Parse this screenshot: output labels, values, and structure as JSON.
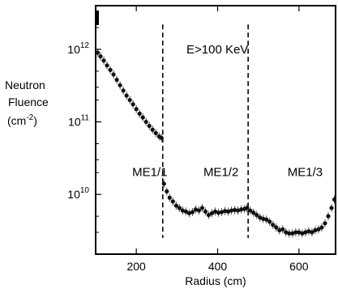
{
  "chart_data": {
    "type": "scatter",
    "title": "",
    "annotation": "E>100 KeV",
    "xlabel": "Radius (cm)",
    "ylabel_lines": [
      "Neutron",
      "Fluence",
      "(cm",
      "-2",
      ")"
    ],
    "xlim": [
      100,
      690
    ],
    "ylim": [
      1500000000.0,
      4000000000000.0
    ],
    "yscale": "log",
    "grid": false,
    "x_ticks": [
      {
        "value": 200,
        "label": "200"
      },
      {
        "value": 400,
        "label": "400"
      },
      {
        "value": 600,
        "label": "600"
      }
    ],
    "y_ticks": [
      {
        "value": 10000000000.0,
        "base": "10",
        "exp": "10"
      },
      {
        "value": 100000000000.0,
        "base": "10",
        "exp": "11"
      },
      {
        "value": 1000000000000.0,
        "base": "10",
        "exp": "12"
      }
    ],
    "boundaries": [
      265,
      475
    ],
    "regions": [
      {
        "label": "ME1/1",
        "x": 190,
        "y": 18000000000.0
      },
      {
        "label": "ME1/2",
        "x": 365,
        "y": 18000000000.0
      },
      {
        "label": "ME1/3",
        "x": 572,
        "y": 18000000000.0
      }
    ],
    "series": [
      {
        "x": [
          105,
          112,
          120,
          128,
          136,
          144,
          152,
          160,
          168,
          176,
          184,
          192,
          200,
          208,
          216,
          224,
          232,
          240,
          248,
          256,
          262,
          268,
          275,
          282,
          290,
          298,
          306,
          314,
          322,
          330,
          338,
          346,
          354,
          362,
          370,
          378,
          386,
          394,
          402,
          410,
          418,
          426,
          434,
          442,
          450,
          458,
          466,
          472,
          480,
          488,
          496,
          504,
          512,
          520,
          528,
          536,
          544,
          552,
          560,
          568,
          576,
          584,
          592,
          600,
          608,
          616,
          624,
          632,
          640,
          648,
          656,
          664,
          672,
          680,
          687
        ],
        "y": [
          900000000000.0,
          800000000000.0,
          700000000000.0,
          600000000000.0,
          520000000000.0,
          450000000000.0,
          380000000000.0,
          320000000000.0,
          270000000000.0,
          230000000000.0,
          200000000000.0,
          175000000000.0,
          150000000000.0,
          130000000000.0,
          115000000000.0,
          100000000000.0,
          88000000000.0,
          78000000000.0,
          70000000000.0,
          63000000000.0,
          60000000000.0,
          14000000000.0,
          11000000000.0,
          9000000000.0,
          8000000000.0,
          7000000000.0,
          6500000000.0,
          6000000000.0,
          5800000000.0,
          5500000000.0,
          5700000000.0,
          6200000000.0,
          6000000000.0,
          6500000000.0,
          5800000000.0,
          5200000000.0,
          5500000000.0,
          5800000000.0,
          5600000000.0,
          5700000000.0,
          5900000000.0,
          5800000000.0,
          6000000000.0,
          6100000000.0,
          6000000000.0,
          6200000000.0,
          6300000000.0,
          6500000000.0,
          6000000000.0,
          5600000000.0,
          5200000000.0,
          4800000000.0,
          4600000000.0,
          4500000000.0,
          4200000000.0,
          3800000000.0,
          3500000000.0,
          3200000000.0,
          3300000000.0,
          3000000000.0,
          2900000000.0,
          2900000000.0,
          3000000000.0,
          3000000000.0,
          2900000000.0,
          3000000000.0,
          3100000000.0,
          3000000000.0,
          3200000000.0,
          3300000000.0,
          3500000000.0,
          4000000000.0,
          5000000000.0,
          6500000000.0,
          8500000000.0
        ]
      }
    ]
  }
}
